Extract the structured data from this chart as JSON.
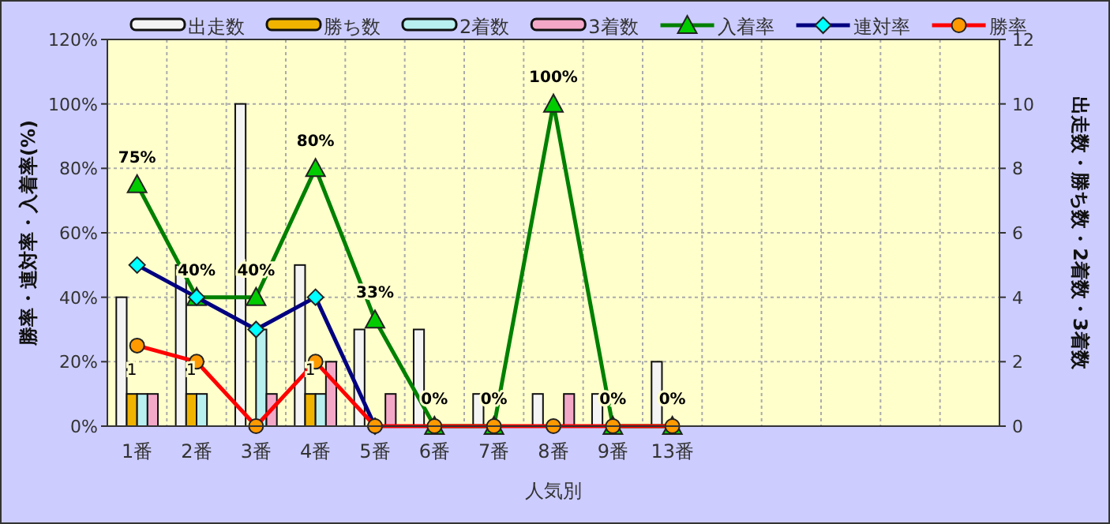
{
  "chart_data": {
    "type": "bar",
    "xlabel": "人気別",
    "ylabel": "勝率・連対率・入着率(%)",
    "y2label": "出走数・勝ち数・2着数・3着数",
    "categories": [
      "1番",
      "2番",
      "3番",
      "4番",
      "5番",
      "6番",
      "7番",
      "8番",
      "9番",
      "13番",
      null,
      null,
      null,
      null,
      null
    ],
    "ylim": [
      0,
      120
    ],
    "yticks": [
      {
        "value": 0,
        "label": "0%"
      },
      {
        "value": 20,
        "label": "20%"
      },
      {
        "value": 40,
        "label": "40%"
      },
      {
        "value": 60,
        "label": "60%"
      },
      {
        "value": 80,
        "label": "80%"
      },
      {
        "value": 100,
        "label": "100%"
      },
      {
        "value": 120,
        "label": "120%"
      }
    ],
    "y2lim": [
      0,
      12
    ],
    "y2ticks": [
      0,
      2,
      4,
      6,
      8,
      10,
      12
    ],
    "grid": true,
    "legend": "top",
    "line_style": "solid",
    "series": [
      {
        "name": "出走数",
        "axis": "y2",
        "color": "#f4f4f4",
        "values": [
          4,
          5,
          10,
          5,
          3,
          3,
          1,
          1,
          1,
          2,
          null,
          null,
          null,
          null,
          null
        ]
      },
      {
        "name": "勝ち数",
        "axis": "y2",
        "color": "#f0b400",
        "values": [
          1,
          1,
          0,
          1,
          0,
          0,
          0,
          0,
          0,
          0,
          null,
          null,
          null,
          null,
          null
        ],
        "value_labels": [
          "1",
          "1",
          null,
          "1",
          null,
          null,
          null,
          null,
          null,
          null,
          null,
          null,
          null,
          null,
          null
        ]
      },
      {
        "name": "2着数",
        "axis": "y2",
        "color": "#b8f0f0",
        "values": [
          1,
          1,
          3,
          1,
          0,
          0,
          0,
          0,
          0,
          0,
          null,
          null,
          null,
          null,
          null
        ]
      },
      {
        "name": "3着数",
        "axis": "y2",
        "color": "#f4a8c8",
        "values": [
          1,
          0,
          1,
          2,
          1,
          0,
          0,
          1,
          0,
          0,
          null,
          null,
          null,
          null,
          null
        ]
      },
      {
        "name": "入着率",
        "type": "line",
        "color": "#008000",
        "marker": "triangle",
        "colors": [
          "#00cc00",
          "#00cc00",
          "#00cc00",
          "#00cc00",
          "#00cc00",
          "#00cc00",
          "#00cc00",
          "#00cc00",
          "#00cc00",
          "#00cc00",
          null,
          null,
          null,
          null,
          null
        ],
        "values": [
          75,
          40,
          40,
          80,
          33,
          0,
          0,
          100,
          0,
          0,
          null,
          null,
          null,
          null,
          null
        ],
        "value_labels": [
          "75%",
          "40%",
          "40%",
          "80%",
          "33%",
          "0%",
          "0%",
          "100%",
          "0%",
          "0%",
          null,
          null,
          null,
          null,
          null
        ]
      },
      {
        "name": "連対率",
        "type": "line",
        "color": "#000080",
        "marker": "diamond",
        "colors": [
          "#00ffff",
          "#00ffff",
          "#00ffff",
          "#00ffff",
          "#00ffff",
          null,
          null,
          null,
          null,
          null,
          null,
          null,
          null,
          null,
          null
        ],
        "values": [
          50,
          40,
          30,
          40,
          0,
          null,
          null,
          null,
          null,
          null,
          null,
          null,
          null,
          null,
          null
        ]
      },
      {
        "name": "勝率",
        "type": "line",
        "color": "#ff0000",
        "marker": "circle",
        "colors": [
          "#ff9900",
          "#ff9900",
          "#ff9900",
          "#ff9900",
          "#ff9900",
          "#ff9900",
          "#ff9900",
          "#ff9900",
          "#ff9900",
          "#ff9900",
          null,
          null,
          null,
          null,
          null
        ],
        "values": [
          25,
          20,
          0,
          20,
          0,
          0,
          0,
          0,
          0,
          0,
          null,
          null,
          null,
          null,
          null
        ]
      }
    ]
  }
}
